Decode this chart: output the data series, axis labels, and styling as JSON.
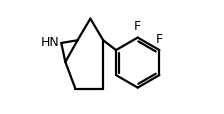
{
  "background_color": "#ffffff",
  "line_color": "#000000",
  "text_color": "#000000",
  "nh_label": "HN",
  "f_label": "F",
  "line_width": 1.6,
  "font_size": 9,
  "figsize": [
    2.24,
    1.15
  ],
  "dpi": 100
}
